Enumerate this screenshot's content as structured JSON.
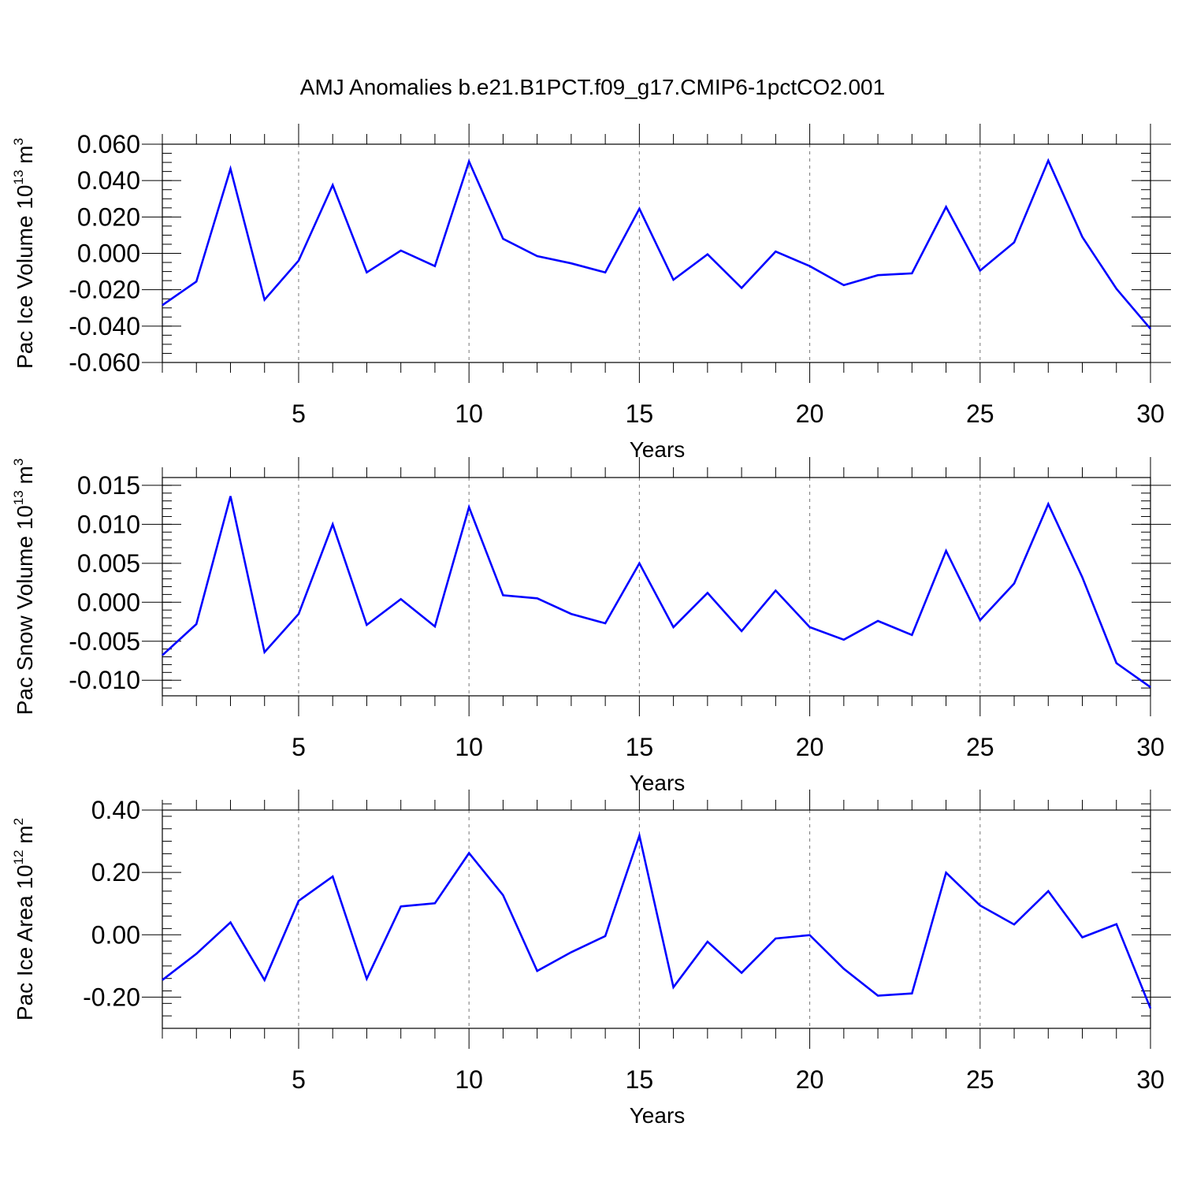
{
  "title": "AMJ Anomalies b.e21.B1PCT.f09_g17.CMIP6-1pctCO2.001",
  "line_color": "#0000ff",
  "chart_data": [
    {
      "type": "line",
      "xlabel": "Years",
      "ylabel": {
        "text": "Pac Ice Volume 10",
        "exp": "13",
        "unit": " m",
        "unit_exp": "3"
      },
      "xlim": [
        1,
        30
      ],
      "ylim": [
        -0.06,
        0.06
      ],
      "x_ticks": [
        5,
        10,
        15,
        20,
        25,
        30
      ],
      "x_tick_labels": [
        "5",
        "10",
        "15",
        "20",
        "25",
        "30"
      ],
      "y_ticks": [
        -0.06,
        -0.04,
        -0.02,
        0.0,
        0.02,
        0.04,
        0.06
      ],
      "y_tick_labels": [
        "-0.060",
        "-0.040",
        "-0.020",
        "0.000",
        "0.020",
        "0.040",
        "0.060"
      ],
      "y_minor_step": 0.005,
      "x": [
        1,
        2,
        3,
        4,
        5,
        6,
        7,
        8,
        9,
        10,
        11,
        12,
        13,
        14,
        15,
        16,
        17,
        18,
        19,
        20,
        21,
        22,
        23,
        24,
        25,
        26,
        27,
        28,
        29,
        30
      ],
      "values": [
        -0.0285,
        -0.0155,
        0.0465,
        -0.0255,
        -0.004,
        0.0375,
        -0.0105,
        0.0015,
        -0.007,
        0.0505,
        0.008,
        -0.0015,
        -0.0055,
        -0.0105,
        0.0245,
        -0.0145,
        -0.0005,
        -0.019,
        0.001,
        -0.007,
        -0.0175,
        -0.012,
        -0.011,
        0.0255,
        -0.0095,
        0.006,
        0.051,
        0.009,
        -0.0195,
        -0.0415
      ]
    },
    {
      "type": "line",
      "xlabel": "Years",
      "ylabel": {
        "text": "Pac Snow Volume 10",
        "exp": "13",
        "unit": " m",
        "unit_exp": "3"
      },
      "xlim": [
        1,
        30
      ],
      "ylim": [
        -0.012,
        0.016
      ],
      "x_ticks": [
        5,
        10,
        15,
        20,
        25,
        30
      ],
      "x_tick_labels": [
        "5",
        "10",
        "15",
        "20",
        "25",
        "30"
      ],
      "y_ticks": [
        -0.01,
        -0.005,
        0.0,
        0.005,
        0.01,
        0.015
      ],
      "y_tick_labels": [
        "-0.010",
        "-0.005",
        "0.000",
        "0.005",
        "0.010",
        "0.015"
      ],
      "y_minor_step": 0.001,
      "x": [
        1,
        2,
        3,
        4,
        5,
        6,
        7,
        8,
        9,
        10,
        11,
        12,
        13,
        14,
        15,
        16,
        17,
        18,
        19,
        20,
        21,
        22,
        23,
        24,
        25,
        26,
        27,
        28,
        29,
        30
      ],
      "values": [
        -0.0068,
        -0.0028,
        0.0136,
        -0.0064,
        -0.0015,
        0.01,
        -0.0029,
        0.0004,
        -0.0031,
        0.0122,
        0.0009,
        0.0005,
        -0.0015,
        -0.0027,
        0.005,
        -0.0032,
        0.0012,
        -0.0037,
        0.0015,
        -0.0032,
        -0.0048,
        -0.0024,
        -0.0042,
        0.0066,
        -0.0023,
        0.0024,
        0.0126,
        0.0032,
        -0.0078,
        -0.0109
      ]
    },
    {
      "type": "line",
      "xlabel": "Years",
      "ylabel": {
        "text": "Pac Ice Area 10",
        "exp": "12",
        "unit": " m",
        "unit_exp": "2"
      },
      "xlim": [
        1,
        30
      ],
      "ylim": [
        -0.3,
        0.4
      ],
      "x_ticks": [
        5,
        10,
        15,
        20,
        25,
        30
      ],
      "x_tick_labels": [
        "5",
        "10",
        "15",
        "20",
        "25",
        "30"
      ],
      "y_ticks": [
        -0.2,
        0.0,
        0.2,
        0.4
      ],
      "y_tick_labels": [
        "-0.20",
        "0.00",
        "0.20",
        "0.40"
      ],
      "y_minor_step": 0.04,
      "x": [
        1,
        2,
        3,
        4,
        5,
        6,
        7,
        8,
        9,
        10,
        11,
        12,
        13,
        14,
        15,
        16,
        17,
        18,
        19,
        20,
        21,
        22,
        23,
        24,
        25,
        26,
        27,
        28,
        29,
        30
      ],
      "values": [
        -0.145,
        -0.061,
        0.04,
        -0.145,
        0.109,
        0.187,
        -0.141,
        0.091,
        0.101,
        0.262,
        0.127,
        -0.116,
        -0.056,
        -0.004,
        0.318,
        -0.168,
        -0.022,
        -0.122,
        -0.012,
        -0.001,
        -0.109,
        -0.195,
        -0.188,
        0.199,
        0.094,
        0.033,
        0.14,
        -0.008,
        0.034,
        -0.236
      ]
    }
  ]
}
